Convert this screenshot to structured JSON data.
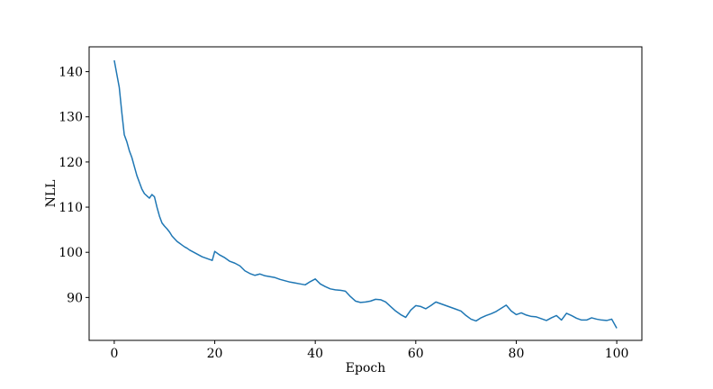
{
  "chart_data": {
    "type": "line",
    "xlabel": "Epoch",
    "ylabel": "NLL",
    "xlim": [
      -5,
      105
    ],
    "ylim": [
      80.5,
      145.5
    ],
    "xticks": [
      0,
      20,
      40,
      60,
      80,
      100
    ],
    "yticks": [
      90,
      100,
      110,
      120,
      130,
      140
    ],
    "grid": false,
    "line_color": "#1f77b4",
    "series": [
      {
        "x": [
          0,
          0.5,
          1,
          1.5,
          2,
          2.5,
          3,
          3.5,
          4,
          4.5,
          5,
          5.5,
          6,
          6.5,
          7,
          7.5,
          8,
          8.5,
          9,
          9.5,
          10,
          10.5,
          11,
          11.5,
          12,
          12.5,
          13,
          13.5,
          14,
          14.5,
          15,
          15.5,
          16,
          16.5,
          17,
          17.5,
          18,
          18.5,
          19,
          19.5,
          20,
          21,
          22,
          23,
          24,
          25,
          26,
          27,
          28,
          29,
          30,
          31,
          32,
          33,
          34,
          35,
          36,
          37,
          38,
          39,
          40,
          41,
          42,
          43,
          44,
          45,
          46,
          47,
          48,
          49,
          50,
          51,
          52,
          53,
          54,
          55,
          56,
          57,
          58,
          59,
          60,
          61,
          62,
          63,
          64,
          65,
          66,
          67,
          68,
          69,
          70,
          71,
          72,
          73,
          74,
          75,
          76,
          77,
          78,
          79,
          80,
          81,
          82,
          83,
          84,
          85,
          86,
          87,
          88,
          89,
          90,
          91,
          92,
          93,
          94,
          95,
          96,
          97,
          98,
          99,
          100
        ],
        "values": [
          142.5,
          139.5,
          136.5,
          131.0,
          126.0,
          124.5,
          122.5,
          121.0,
          119.0,
          117.0,
          115.5,
          114.0,
          113.0,
          112.5,
          112.0,
          112.8,
          112.3,
          110.0,
          108.0,
          106.5,
          105.8,
          105.2,
          104.5,
          103.6,
          103.0,
          102.4,
          102.0,
          101.6,
          101.2,
          100.9,
          100.5,
          100.2,
          99.9,
          99.6,
          99.3,
          99.0,
          98.8,
          98.6,
          98.4,
          98.2,
          100.2,
          99.4,
          98.8,
          98.0,
          97.6,
          97.0,
          95.9,
          95.3,
          94.9,
          95.2,
          94.8,
          94.6,
          94.4,
          94.0,
          93.7,
          93.4,
          93.2,
          93.0,
          92.8,
          93.5,
          94.1,
          93.0,
          92.4,
          91.9,
          91.7,
          91.6,
          91.4,
          90.2,
          89.2,
          88.9,
          89.0,
          89.2,
          89.6,
          89.5,
          89.0,
          88.0,
          87.0,
          86.2,
          85.6,
          87.2,
          88.2,
          88.0,
          87.5,
          88.2,
          89.0,
          88.6,
          88.2,
          87.8,
          87.4,
          87.0,
          86.0,
          85.2,
          84.8,
          85.5,
          86.0,
          86.4,
          86.9,
          87.6,
          88.3,
          87.0,
          86.2,
          86.6,
          86.1,
          85.8,
          85.7,
          85.3,
          84.9,
          85.5,
          86.0,
          85.0,
          86.5,
          86.0,
          85.4,
          85.0,
          85.0,
          85.5,
          85.2,
          85.0,
          84.9,
          85.2,
          83.2
        ]
      }
    ]
  }
}
